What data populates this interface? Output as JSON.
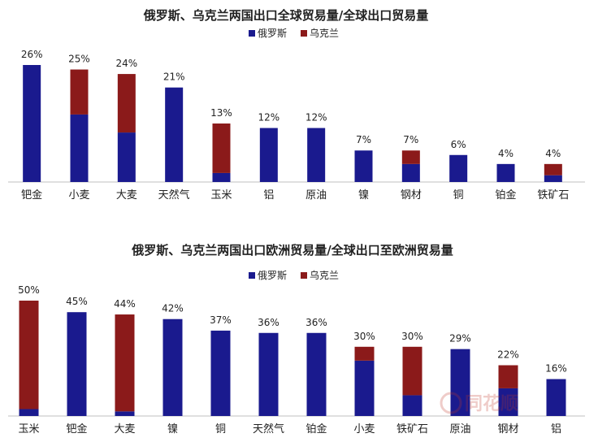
{
  "chart_data": [
    {
      "type": "bar",
      "stacked": true,
      "title": "俄罗斯、乌克兰两国出口全球贸易量/全球出口贸易量",
      "legend": [
        "俄罗斯",
        "乌克兰"
      ],
      "legend_position": "top-right",
      "colors": {
        "俄罗斯": "#1a1a8e",
        "乌克兰": "#8b1a1a"
      },
      "categories": [
        "钯金",
        "小麦",
        "大麦",
        "天然气",
        "玉米",
        "铝",
        "原油",
        "镍",
        "钢材",
        "铜",
        "铂金",
        "铁矿石"
      ],
      "total_labels": [
        "26%",
        "25%",
        "24%",
        "21%",
        "13%",
        "12%",
        "12%",
        "7%",
        "7%",
        "6%",
        "4%",
        "4%"
      ],
      "series": [
        {
          "name": "俄罗斯",
          "values": [
            26,
            15,
            11,
            21,
            2,
            12,
            12,
            7,
            4,
            6,
            4,
            1.5
          ]
        },
        {
          "name": "乌克兰",
          "values": [
            0,
            10,
            13,
            0,
            11,
            0,
            0,
            0,
            3,
            0,
            0,
            2.5
          ]
        }
      ],
      "ylim": [
        0,
        26
      ]
    },
    {
      "type": "bar",
      "stacked": true,
      "title": "俄罗斯、乌克兰两国出口欧洲贸易量/全球出口至欧洲贸易量",
      "legend": [
        "俄罗斯",
        "乌克兰"
      ],
      "legend_position": "top-right",
      "colors": {
        "俄罗斯": "#1a1a8e",
        "乌克兰": "#8b1a1a"
      },
      "categories": [
        "玉米",
        "钯金",
        "大麦",
        "镍",
        "铜",
        "天然气",
        "铂金",
        "小麦",
        "铁矿石",
        "原油",
        "钢材",
        "铝"
      ],
      "total_labels": [
        "50%",
        "45%",
        "44%",
        "42%",
        "37%",
        "36%",
        "36%",
        "30%",
        "30%",
        "29%",
        "22%",
        "16%"
      ],
      "series": [
        {
          "name": "俄罗斯",
          "values": [
            3,
            45,
            2,
            42,
            37,
            36,
            36,
            24,
            9,
            29,
            12,
            16
          ]
        },
        {
          "name": "乌克兰",
          "values": [
            47,
            0,
            42,
            0,
            0,
            0,
            0,
            6,
            21,
            0,
            10,
            0
          ]
        }
      ],
      "ylim": [
        0,
        50
      ]
    }
  ],
  "watermark": "同花顺"
}
